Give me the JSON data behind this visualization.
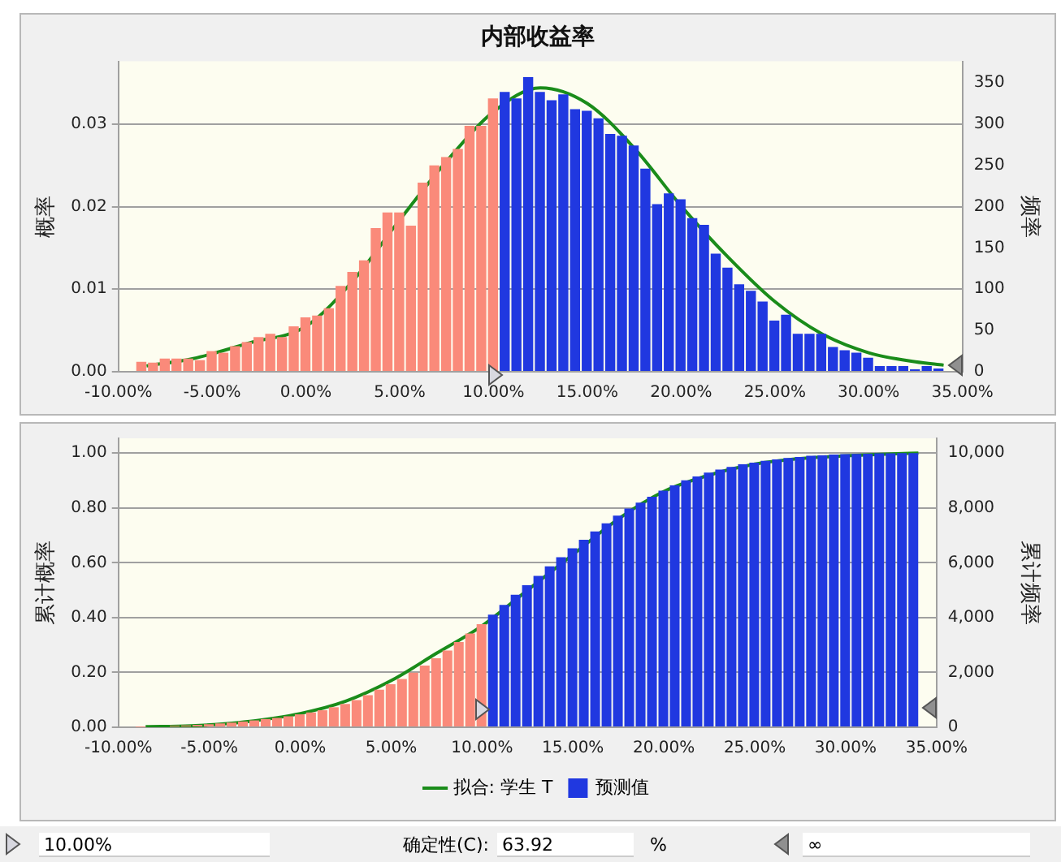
{
  "chart_data": [
    {
      "type": "histogram",
      "title": "内部收益率",
      "ylabel": "概率",
      "y2label": "频率",
      "bins": [
        -9.09,
        -8.465,
        -7.84,
        -7.215,
        -6.59,
        -5.965,
        -5.34,
        -4.715,
        -4.09,
        -3.465,
        -2.84,
        -2.215,
        -1.59,
        -0.965,
        -0.34,
        0.285,
        0.91,
        1.535,
        2.16,
        2.785,
        3.41,
        4.035,
        4.66,
        5.285,
        5.91,
        6.535,
        7.16,
        7.785,
        8.41,
        9.035,
        9.66,
        10.285,
        10.91,
        11.535,
        12.16,
        12.785,
        13.41,
        14.035,
        14.66,
        15.285,
        15.91,
        16.535,
        17.16,
        17.785,
        18.41,
        19.035,
        19.66,
        20.285,
        20.91,
        21.535,
        22.16,
        22.785,
        23.41,
        24.035,
        24.66,
        25.285,
        25.91,
        26.535,
        27.16,
        27.785,
        28.41,
        29.035,
        29.66,
        30.285,
        30.91,
        31.535,
        32.16,
        32.785,
        33.41,
        34.035
      ],
      "xlim": [
        -10,
        35
      ],
      "xticks": [
        {
          "value": -10,
          "label": "-10.00%"
        },
        {
          "value": -5,
          "label": "-5.00%"
        },
        {
          "value": 0,
          "label": "0.00%"
        },
        {
          "value": 5,
          "label": "5.00%"
        },
        {
          "value": 10,
          "label": "10.00%"
        },
        {
          "value": 15,
          "label": "15.00%"
        },
        {
          "value": 20,
          "label": "20.00%"
        },
        {
          "value": 25,
          "label": "25.00%"
        },
        {
          "value": 30,
          "label": "30.00%"
        },
        {
          "value": 35,
          "label": "35.00%"
        }
      ],
      "ylim": [
        0,
        0.0376
      ],
      "yticks": [
        {
          "value": 0,
          "label": "0.00"
        },
        {
          "value": 0.01,
          "label": "0.01"
        },
        {
          "value": 0.02,
          "label": "0.02"
        },
        {
          "value": 0.03,
          "label": "0.03"
        }
      ],
      "y2lim": [
        0,
        376
      ],
      "y2ticks": [
        0,
        50,
        100,
        150,
        200,
        250,
        300,
        350
      ],
      "grid": "y",
      "series": [
        {
          "type": "line",
          "color": "#1a8c1a",
          "x": [
            -8.5,
            -6,
            -3,
            0,
            2.5,
            5,
            7.5,
            10,
            12.5,
            15,
            17.5,
            20,
            22.5,
            25,
            27.5,
            30,
            32.5,
            34
          ],
          "values": [
            0.0007,
            0.0016,
            0.0035,
            0.0055,
            0.011,
            0.0184,
            0.0255,
            0.0315,
            0.0344,
            0.0325,
            0.0271,
            0.0201,
            0.0139,
            0.0085,
            0.0046,
            0.0023,
            0.0012,
            0.0008
          ]
        },
        {
          "type": "histogram",
          "color": "#2038e0",
          "colors": [
            "#fa8a7a",
            "#fa8a7a",
            "#fa8a7a",
            "#fa8a7a",
            "#fa8a7a",
            "#fa8a7a",
            "#fa8a7a",
            "#fa8a7a",
            "#fa8a7a",
            "#fa8a7a",
            "#fa8a7a",
            "#fa8a7a",
            "#fa8a7a",
            "#fa8a7a",
            "#fa8a7a",
            "#fa8a7a",
            "#fa8a7a",
            "#fa8a7a",
            "#fa8a7a",
            "#fa8a7a",
            "#fa8a7a",
            "#fa8a7a",
            "#fa8a7a",
            "#fa8a7a",
            "#fa8a7a",
            "#fa8a7a",
            "#fa8a7a",
            "#fa8a7a",
            "#fa8a7a",
            "#fa8a7a",
            "#fa8a7a",
            "#2038e0",
            "#2038e0",
            "#2038e0",
            "#2038e0",
            "#2038e0",
            "#2038e0",
            "#2038e0",
            "#2038e0",
            "#2038e0",
            "#2038e0",
            "#2038e0",
            "#2038e0",
            "#2038e0",
            "#2038e0",
            "#2038e0",
            "#2038e0",
            "#2038e0",
            "#2038e0",
            "#2038e0",
            "#2038e0",
            "#2038e0",
            "#2038e0",
            "#2038e0",
            "#2038e0",
            "#2038e0",
            "#2038e0",
            "#2038e0",
            "#2038e0",
            "#2038e0",
            "#2038e0",
            "#2038e0",
            "#2038e0",
            "#2038e0",
            "#2038e0",
            "#2038e0",
            "#2038e0",
            "#2038e0",
            "#2038e0"
          ],
          "values": [
            0.0012,
            0.0011,
            0.0016,
            0.0016,
            0.0016,
            0.0014,
            0.0025,
            0.0023,
            0.0031,
            0.0036,
            0.0042,
            0.0046,
            0.0042,
            0.0055,
            0.0066,
            0.0068,
            0.0077,
            0.0104,
            0.0121,
            0.0135,
            0.0174,
            0.0193,
            0.0193,
            0.0177,
            0.0229,
            0.025,
            0.026,
            0.027,
            0.0298,
            0.0298,
            0.0331,
            0.0339,
            0.0331,
            0.0357,
            0.0339,
            0.0329,
            0.0336,
            0.0318,
            0.0316,
            0.0307,
            0.0288,
            0.0286,
            0.0274,
            0.0246,
            0.0203,
            0.0216,
            0.0209,
            0.0186,
            0.0178,
            0.0143,
            0.0126,
            0.0106,
            0.0098,
            0.0085,
            0.0062,
            0.0069,
            0.0046,
            0.0046,
            0.0046,
            0.003,
            0.0026,
            0.0023,
            0.0017,
            0.0007,
            0.0007,
            0.0007,
            0.0003,
            0.0007,
            0.0004
          ]
        }
      ]
    },
    {
      "type": "histogram",
      "ylabel": "累计概率",
      "y2label": "累计频率",
      "bins": [
        -9.09,
        -8.465,
        -7.84,
        -7.215,
        -6.59,
        -5.965,
        -5.34,
        -4.715,
        -4.09,
        -3.465,
        -2.84,
        -2.215,
        -1.59,
        -0.965,
        -0.34,
        0.285,
        0.91,
        1.535,
        2.16,
        2.785,
        3.41,
        4.035,
        4.66,
        5.285,
        5.91,
        6.535,
        7.16,
        7.785,
        8.41,
        9.035,
        9.66,
        10.285,
        10.91,
        11.535,
        12.16,
        12.785,
        13.41,
        14.035,
        14.66,
        15.285,
        15.91,
        16.535,
        17.16,
        17.785,
        18.41,
        19.035,
        19.66,
        20.285,
        20.91,
        21.535,
        22.16,
        22.785,
        23.41,
        24.035,
        24.66,
        25.285,
        25.91,
        26.535,
        27.16,
        27.785,
        28.41,
        29.035,
        29.66,
        30.285,
        30.91,
        31.535,
        32.16,
        32.785,
        33.41,
        34.035
      ],
      "xlim": [
        -10,
        35
      ],
      "xticks": [
        {
          "value": -10,
          "label": "-10.00%"
        },
        {
          "value": -5,
          "label": "-5.00%"
        },
        {
          "value": 0,
          "label": "0.00%"
        },
        {
          "value": 5,
          "label": "5.00%"
        },
        {
          "value": 10,
          "label": "10.00%"
        },
        {
          "value": 15,
          "label": "15.00%"
        },
        {
          "value": 20,
          "label": "20.00%"
        },
        {
          "value": 25,
          "label": "25.00%"
        },
        {
          "value": 30,
          "label": "30.00%"
        },
        {
          "value": 35,
          "label": "35.00%"
        }
      ],
      "ylim": [
        0,
        1.054
      ],
      "yticks": [
        {
          "value": 0,
          "label": "0.00"
        },
        {
          "value": 0.2,
          "label": "0.20"
        },
        {
          "value": 0.4,
          "label": "0.40"
        },
        {
          "value": 0.6,
          "label": "0.60"
        },
        {
          "value": 0.8,
          "label": "0.80"
        },
        {
          "value": 1,
          "label": "1.00"
        }
      ],
      "y2lim": [
        0,
        10540
      ],
      "y2ticks": [
        0,
        {
          "value": 2000,
          "label": "2,000"
        },
        {
          "value": 4000,
          "label": "4,000"
        },
        {
          "value": 6000,
          "label": "6,000"
        },
        {
          "value": 8000,
          "label": "8,000"
        },
        {
          "value": 10000,
          "label": "10,000"
        }
      ],
      "grid": "y",
      "legend": "bottom",
      "annotations": [
        "10.00%",
        "确定性(C):",
        "63.92",
        "%",
        "∞"
      ],
      "series": [
        {
          "name": "拟合: 学生 T",
          "type": "line",
          "color": "#1a8c1a",
          "x": [
            -8.5,
            -6,
            -3,
            0,
            2.5,
            5,
            7.5,
            10,
            12.5,
            15,
            17.5,
            20,
            22.5,
            25,
            27.5,
            30,
            32.5,
            34
          ],
          "values": [
            0.002,
            0.005,
            0.02,
            0.05,
            0.095,
            0.17,
            0.27,
            0.37,
            0.5,
            0.63,
            0.76,
            0.86,
            0.92,
            0.96,
            0.98,
            0.99,
            0.997,
            1.0
          ]
        },
        {
          "name": "预测值",
          "type": "histogram",
          "color": "#2038e0",
          "colors": [
            "#fa8a7a",
            "#fa8a7a",
            "#fa8a7a",
            "#fa8a7a",
            "#fa8a7a",
            "#fa8a7a",
            "#fa8a7a",
            "#fa8a7a",
            "#fa8a7a",
            "#fa8a7a",
            "#fa8a7a",
            "#fa8a7a",
            "#fa8a7a",
            "#fa8a7a",
            "#fa8a7a",
            "#fa8a7a",
            "#fa8a7a",
            "#fa8a7a",
            "#fa8a7a",
            "#fa8a7a",
            "#fa8a7a",
            "#fa8a7a",
            "#fa8a7a",
            "#fa8a7a",
            "#fa8a7a",
            "#fa8a7a",
            "#fa8a7a",
            "#fa8a7a",
            "#fa8a7a",
            "#fa8a7a",
            "#fa8a7a",
            "#2038e0",
            "#2038e0",
            "#2038e0",
            "#2038e0",
            "#2038e0",
            "#2038e0",
            "#2038e0",
            "#2038e0",
            "#2038e0",
            "#2038e0",
            "#2038e0",
            "#2038e0",
            "#2038e0",
            "#2038e0",
            "#2038e0",
            "#2038e0",
            "#2038e0",
            "#2038e0",
            "#2038e0",
            "#2038e0",
            "#2038e0",
            "#2038e0",
            "#2038e0",
            "#2038e0",
            "#2038e0",
            "#2038e0",
            "#2038e0",
            "#2038e0",
            "#2038e0",
            "#2038e0",
            "#2038e0",
            "#2038e0",
            "#2038e0",
            "#2038e0",
            "#2038e0",
            "#2038e0",
            "#2038e0",
            "#2038e0"
          ],
          "values": [
            0.001,
            null,
            null,
            0.006,
            0.007,
            0.009,
            0.011,
            0.014,
            0.017,
            0.021,
            0.025,
            0.03,
            0.034,
            0.04,
            0.047,
            0.054,
            0.062,
            0.073,
            0.085,
            0.099,
            0.117,
            0.137,
            0.157,
            0.176,
            0.199,
            0.225,
            0.252,
            0.28,
            0.311,
            0.342,
            0.376,
            0.411,
            0.446,
            0.483,
            0.518,
            0.552,
            0.587,
            0.62,
            0.653,
            0.684,
            0.714,
            0.744,
            0.772,
            0.798,
            0.819,
            0.841,
            0.863,
            0.882,
            0.901,
            0.915,
            0.929,
            0.94,
            0.95,
            0.959,
            0.965,
            0.972,
            0.977,
            0.982,
            0.986,
            0.99,
            0.992,
            0.995,
            0.996,
            0.997,
            0.998,
            0.999,
            0.999,
            1.0,
            1.0
          ]
        }
      ]
    }
  ]
}
